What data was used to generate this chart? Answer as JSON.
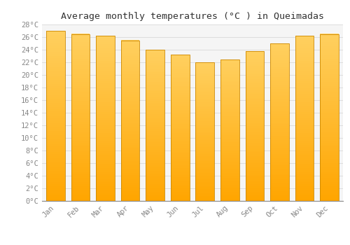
{
  "title": "Average monthly temperatures (°C ) in Queimadas",
  "months": [
    "Jan",
    "Feb",
    "Mar",
    "Apr",
    "May",
    "Jun",
    "Jul",
    "Aug",
    "Sep",
    "Oct",
    "Nov",
    "Dec"
  ],
  "values": [
    27.0,
    26.5,
    26.2,
    25.5,
    24.0,
    23.2,
    22.0,
    22.5,
    23.8,
    25.0,
    26.2,
    26.5
  ],
  "bar_color_bottom": "#FFA500",
  "bar_color_top": "#FFD060",
  "bar_edge_color": "#CC8800",
  "ylim": [
    0,
    28
  ],
  "ytick_max": 28,
  "ytick_step": 2,
  "background_color": "#FFFFFF",
  "plot_bg_color": "#F5F5F5",
  "grid_color": "#DDDDDD",
  "title_fontsize": 9.5,
  "tick_fontsize": 7.5,
  "tick_color": "#888888",
  "font_family": "monospace"
}
